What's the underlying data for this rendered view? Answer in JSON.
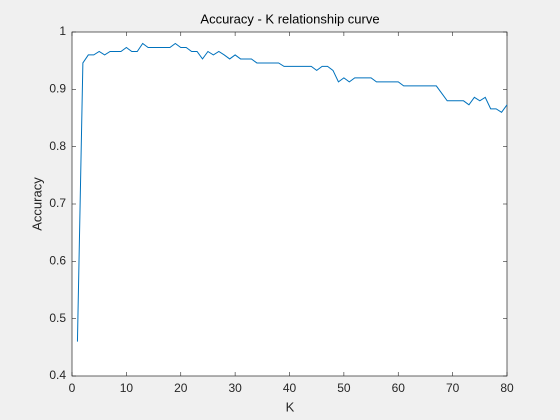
{
  "chart_data": {
    "type": "line",
    "title": "Accuracy - K relationship curve",
    "x_label": "K",
    "y_label": "Accuracy",
    "x": [
      1,
      2,
      3,
      4,
      5,
      6,
      7,
      8,
      9,
      10,
      11,
      12,
      13,
      14,
      15,
      16,
      17,
      18,
      19,
      20,
      21,
      22,
      23,
      24,
      25,
      26,
      27,
      28,
      29,
      30,
      31,
      32,
      33,
      34,
      35,
      36,
      37,
      38,
      39,
      40,
      41,
      42,
      43,
      44,
      45,
      46,
      47,
      48,
      49,
      50,
      51,
      52,
      53,
      54,
      55,
      56,
      57,
      58,
      59,
      60,
      61,
      62,
      63,
      64,
      65,
      66,
      67,
      68,
      69,
      70,
      71,
      72,
      73,
      74,
      75,
      76,
      77,
      78,
      79,
      80
    ],
    "values": [
      0.46,
      0.946,
      0.96,
      0.96,
      0.966,
      0.96,
      0.966,
      0.966,
      0.966,
      0.973,
      0.966,
      0.966,
      0.98,
      0.973,
      0.973,
      0.973,
      0.973,
      0.973,
      0.98,
      0.973,
      0.973,
      0.966,
      0.966,
      0.953,
      0.966,
      0.96,
      0.966,
      0.96,
      0.953,
      0.96,
      0.953,
      0.953,
      0.953,
      0.946,
      0.946,
      0.946,
      0.946,
      0.946,
      0.94,
      0.94,
      0.94,
      0.94,
      0.94,
      0.94,
      0.933,
      0.94,
      0.94,
      0.933,
      0.913,
      0.92,
      0.913,
      0.92,
      0.92,
      0.92,
      0.92,
      0.913,
      0.913,
      0.913,
      0.913,
      0.913,
      0.906,
      0.906,
      0.906,
      0.906,
      0.906,
      0.906,
      0.906,
      0.893,
      0.88,
      0.88,
      0.88,
      0.88,
      0.873,
      0.886,
      0.88,
      0.886,
      0.866,
      0.866,
      0.86,
      0.873
    ],
    "color": "#0072bd",
    "xlim": [
      0,
      80
    ],
    "xticks": [
      0,
      10,
      20,
      30,
      40,
      50,
      60,
      70,
      80
    ],
    "ylim": [
      0.4,
      1
    ],
    "yticks": [
      0.4,
      0.5,
      0.6,
      0.7,
      0.8,
      0.9,
      1
    ]
  }
}
